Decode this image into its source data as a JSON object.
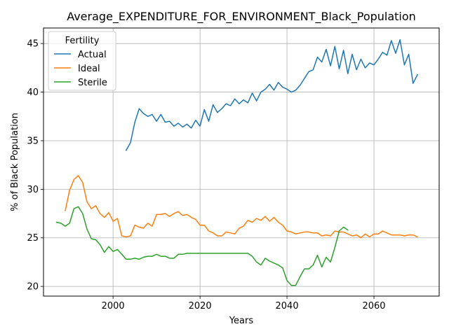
{
  "chart_data": {
    "type": "line",
    "title": "Average_EXPENDITURE_FOR_ENVIRONMENT_Black_Population",
    "xlabel": "Years",
    "ylabel": "% of Black Population",
    "xlim": [
      1984,
      2075
    ],
    "ylim": [
      19,
      46.6
    ],
    "xticks": [
      2000,
      2020,
      2040,
      2060
    ],
    "yticks": [
      20,
      25,
      30,
      35,
      40,
      45
    ],
    "grid": true,
    "legend": {
      "title": "Fertility",
      "placement": "top-left"
    },
    "series": [
      {
        "name": "Actual",
        "color": "#1f77b4",
        "x": [
          2003,
          2004,
          2005,
          2006,
          2007,
          2008,
          2009,
          2010,
          2011,
          2012,
          2013,
          2014,
          2015,
          2016,
          2017,
          2018,
          2019,
          2020,
          2021,
          2022,
          2023,
          2024,
          2025,
          2026,
          2027,
          2028,
          2029,
          2030,
          2031,
          2032,
          2033,
          2034,
          2035,
          2036,
          2037,
          2038,
          2039,
          2040,
          2041,
          2042,
          2043,
          2044,
          2045,
          2046,
          2047,
          2048,
          2049,
          2050,
          2051,
          2052,
          2053,
          2054,
          2055,
          2056,
          2057,
          2058,
          2059,
          2060,
          2061,
          2062,
          2063,
          2064,
          2065,
          2066,
          2067,
          2068,
          2069,
          2070
        ],
        "values": [
          34.0,
          34.8,
          36.9,
          38.3,
          37.8,
          37.5,
          37.7,
          37.0,
          37.7,
          36.9,
          37.0,
          36.5,
          36.8,
          36.4,
          36.7,
          36.3,
          37.1,
          36.5,
          38.2,
          37.0,
          38.7,
          37.9,
          38.3,
          38.8,
          38.6,
          39.3,
          38.8,
          39.2,
          38.9,
          39.9,
          39.1,
          40.0,
          40.3,
          40.8,
          40.2,
          41.0,
          40.5,
          40.3,
          40.0,
          40.2,
          40.7,
          41.4,
          42.1,
          42.3,
          43.6,
          43.1,
          44.4,
          42.7,
          44.7,
          42.4,
          44.3,
          41.9,
          43.9,
          42.3,
          43.4,
          42.5,
          43.0,
          42.8,
          43.4,
          44.1,
          43.8,
          45.3,
          44.0,
          45.4,
          42.8,
          43.9,
          40.9,
          41.8
        ]
      },
      {
        "name": "Ideal",
        "color": "#ff7f0e",
        "x": [
          1989,
          1990,
          1991,
          1992,
          1993,
          1994,
          1995,
          1996,
          1997,
          1998,
          1999,
          2000,
          2001,
          2002,
          2003,
          2004,
          2005,
          2006,
          2007,
          2008,
          2009,
          2010,
          2011,
          2012,
          2013,
          2014,
          2015,
          2016,
          2017,
          2018,
          2019,
          2020,
          2021,
          2022,
          2023,
          2024,
          2025,
          2026,
          2027,
          2028,
          2029,
          2030,
          2031,
          2032,
          2033,
          2034,
          2035,
          2036,
          2037,
          2038,
          2039,
          2040,
          2041,
          2042,
          2043,
          2044,
          2045,
          2046,
          2047,
          2048,
          2049,
          2050,
          2051,
          2052,
          2053,
          2054,
          2055,
          2056,
          2057,
          2058,
          2059,
          2060,
          2061,
          2062,
          2063,
          2064,
          2065,
          2066,
          2067,
          2068,
          2069,
          2070
        ],
        "values": [
          27.8,
          29.9,
          31.0,
          31.4,
          30.7,
          28.7,
          28.0,
          28.3,
          27.5,
          27.1,
          27.6,
          26.7,
          27.0,
          25.2,
          25.1,
          25.2,
          26.3,
          26.1,
          26.0,
          26.5,
          26.2,
          27.4,
          27.4,
          27.5,
          27.2,
          27.5,
          27.7,
          27.3,
          27.4,
          27.1,
          26.9,
          26.3,
          26.3,
          25.7,
          25.5,
          25.2,
          25.2,
          25.6,
          25.5,
          25.4,
          26.0,
          26.2,
          26.8,
          26.6,
          27.0,
          26.8,
          27.2,
          26.7,
          27.1,
          26.6,
          26.3,
          25.7,
          25.6,
          25.4,
          25.5,
          25.6,
          25.6,
          25.5,
          25.5,
          25.2,
          25.3,
          25.2,
          25.7,
          25.6,
          25.6,
          25.4,
          25.2,
          25.3,
          25.0,
          25.4,
          25.1,
          25.4,
          25.4,
          25.7,
          25.5,
          25.3,
          25.3,
          25.3,
          25.2,
          25.3,
          25.3,
          25.1
        ]
      },
      {
        "name": "Sterile",
        "color": "#2ca02c",
        "x": [
          1987,
          1988,
          1989,
          1990,
          1991,
          1992,
          1993,
          1994,
          1995,
          1996,
          1997,
          1998,
          1999,
          2000,
          2001,
          2002,
          2003,
          2004,
          2005,
          2006,
          2007,
          2008,
          2009,
          2010,
          2011,
          2012,
          2013,
          2014,
          2015,
          2016,
          2017,
          2018,
          2019,
          2020,
          2021,
          2022,
          2023,
          2024,
          2025,
          2026,
          2027,
          2028,
          2029,
          2030,
          2031,
          2032,
          2033,
          2034,
          2035,
          2036,
          2037,
          2038,
          2039,
          2040,
          2041,
          2042,
          2043,
          2044,
          2045,
          2046,
          2047,
          2048,
          2049,
          2050,
          2051,
          2052,
          2053,
          2054
        ],
        "values": [
          26.6,
          26.5,
          26.2,
          26.5,
          28.0,
          28.2,
          27.5,
          25.9,
          24.9,
          24.8,
          24.3,
          23.5,
          24.1,
          23.6,
          23.8,
          23.3,
          22.8,
          22.8,
          22.9,
          22.8,
          23.0,
          23.1,
          23.1,
          23.3,
          23.1,
          23.1,
          22.9,
          22.9,
          23.3,
          23.3,
          23.4,
          23.4,
          23.4,
          23.4,
          23.4,
          23.4,
          23.4,
          23.4,
          23.4,
          23.4,
          23.4,
          23.4,
          23.4,
          23.4,
          23.4,
          23.1,
          22.5,
          22.2,
          22.9,
          22.6,
          22.4,
          22.2,
          21.9,
          20.6,
          20.1,
          20.1,
          21.0,
          21.8,
          21.8,
          22.2,
          23.2,
          22.0,
          23.0,
          22.5,
          24.0,
          25.7,
          26.1,
          25.8
        ]
      }
    ]
  }
}
